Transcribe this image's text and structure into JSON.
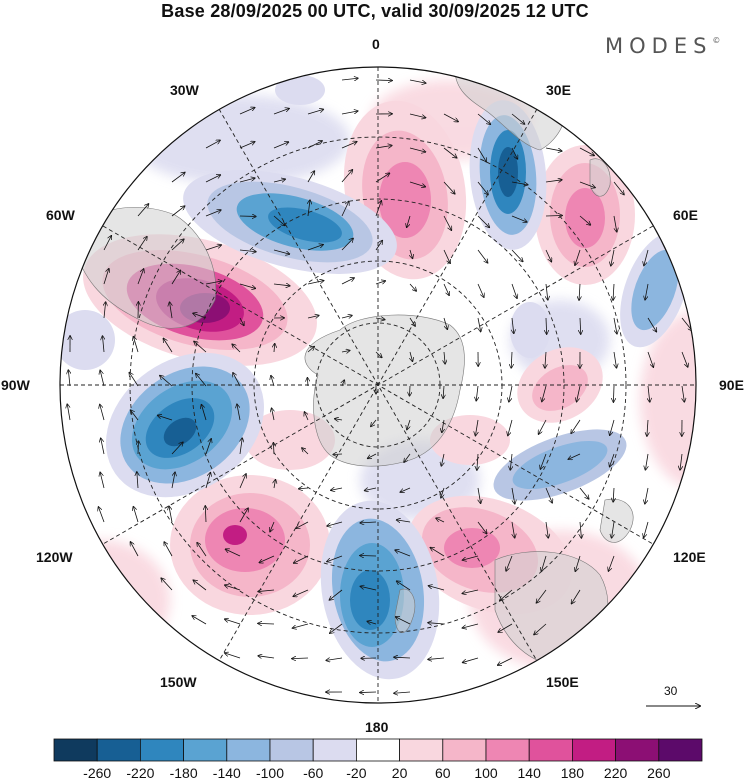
{
  "title": "Base 28/09/2025 00 UTC, valid 30/09/2025 12 UTC",
  "brand": "MODES",
  "brand_mark": "©",
  "longitude_labels": {
    "lon_0": "0",
    "lon_30e": "30E",
    "lon_60e": "60E",
    "lon_90e": "90E",
    "lon_120e": "120E",
    "lon_150e": "150E",
    "lon_180": "180",
    "lon_150w": "150W",
    "lon_120w": "120W",
    "lon_90w": "90W",
    "lon_60w": "60W",
    "lon_30w": "30W"
  },
  "vector_scale": {
    "value": "30"
  },
  "colorbar": {
    "labels": [
      "-260",
      "-220",
      "-180",
      "-140",
      "-100",
      "-60",
      "-20",
      "20",
      "60",
      "100",
      "140",
      "180",
      "220",
      "260"
    ],
    "colors": [
      "#0f3a5e",
      "#175f94",
      "#2f86be",
      "#5aa3d2",
      "#8cb6df",
      "#b8c6e4",
      "#dcdcf0",
      "#ffffff",
      "#f9d7df",
      "#f5b6c9",
      "#ee86b3",
      "#e0529c",
      "#c21d83",
      "#8c0f74",
      "#5c0a6a"
    ]
  }
}
